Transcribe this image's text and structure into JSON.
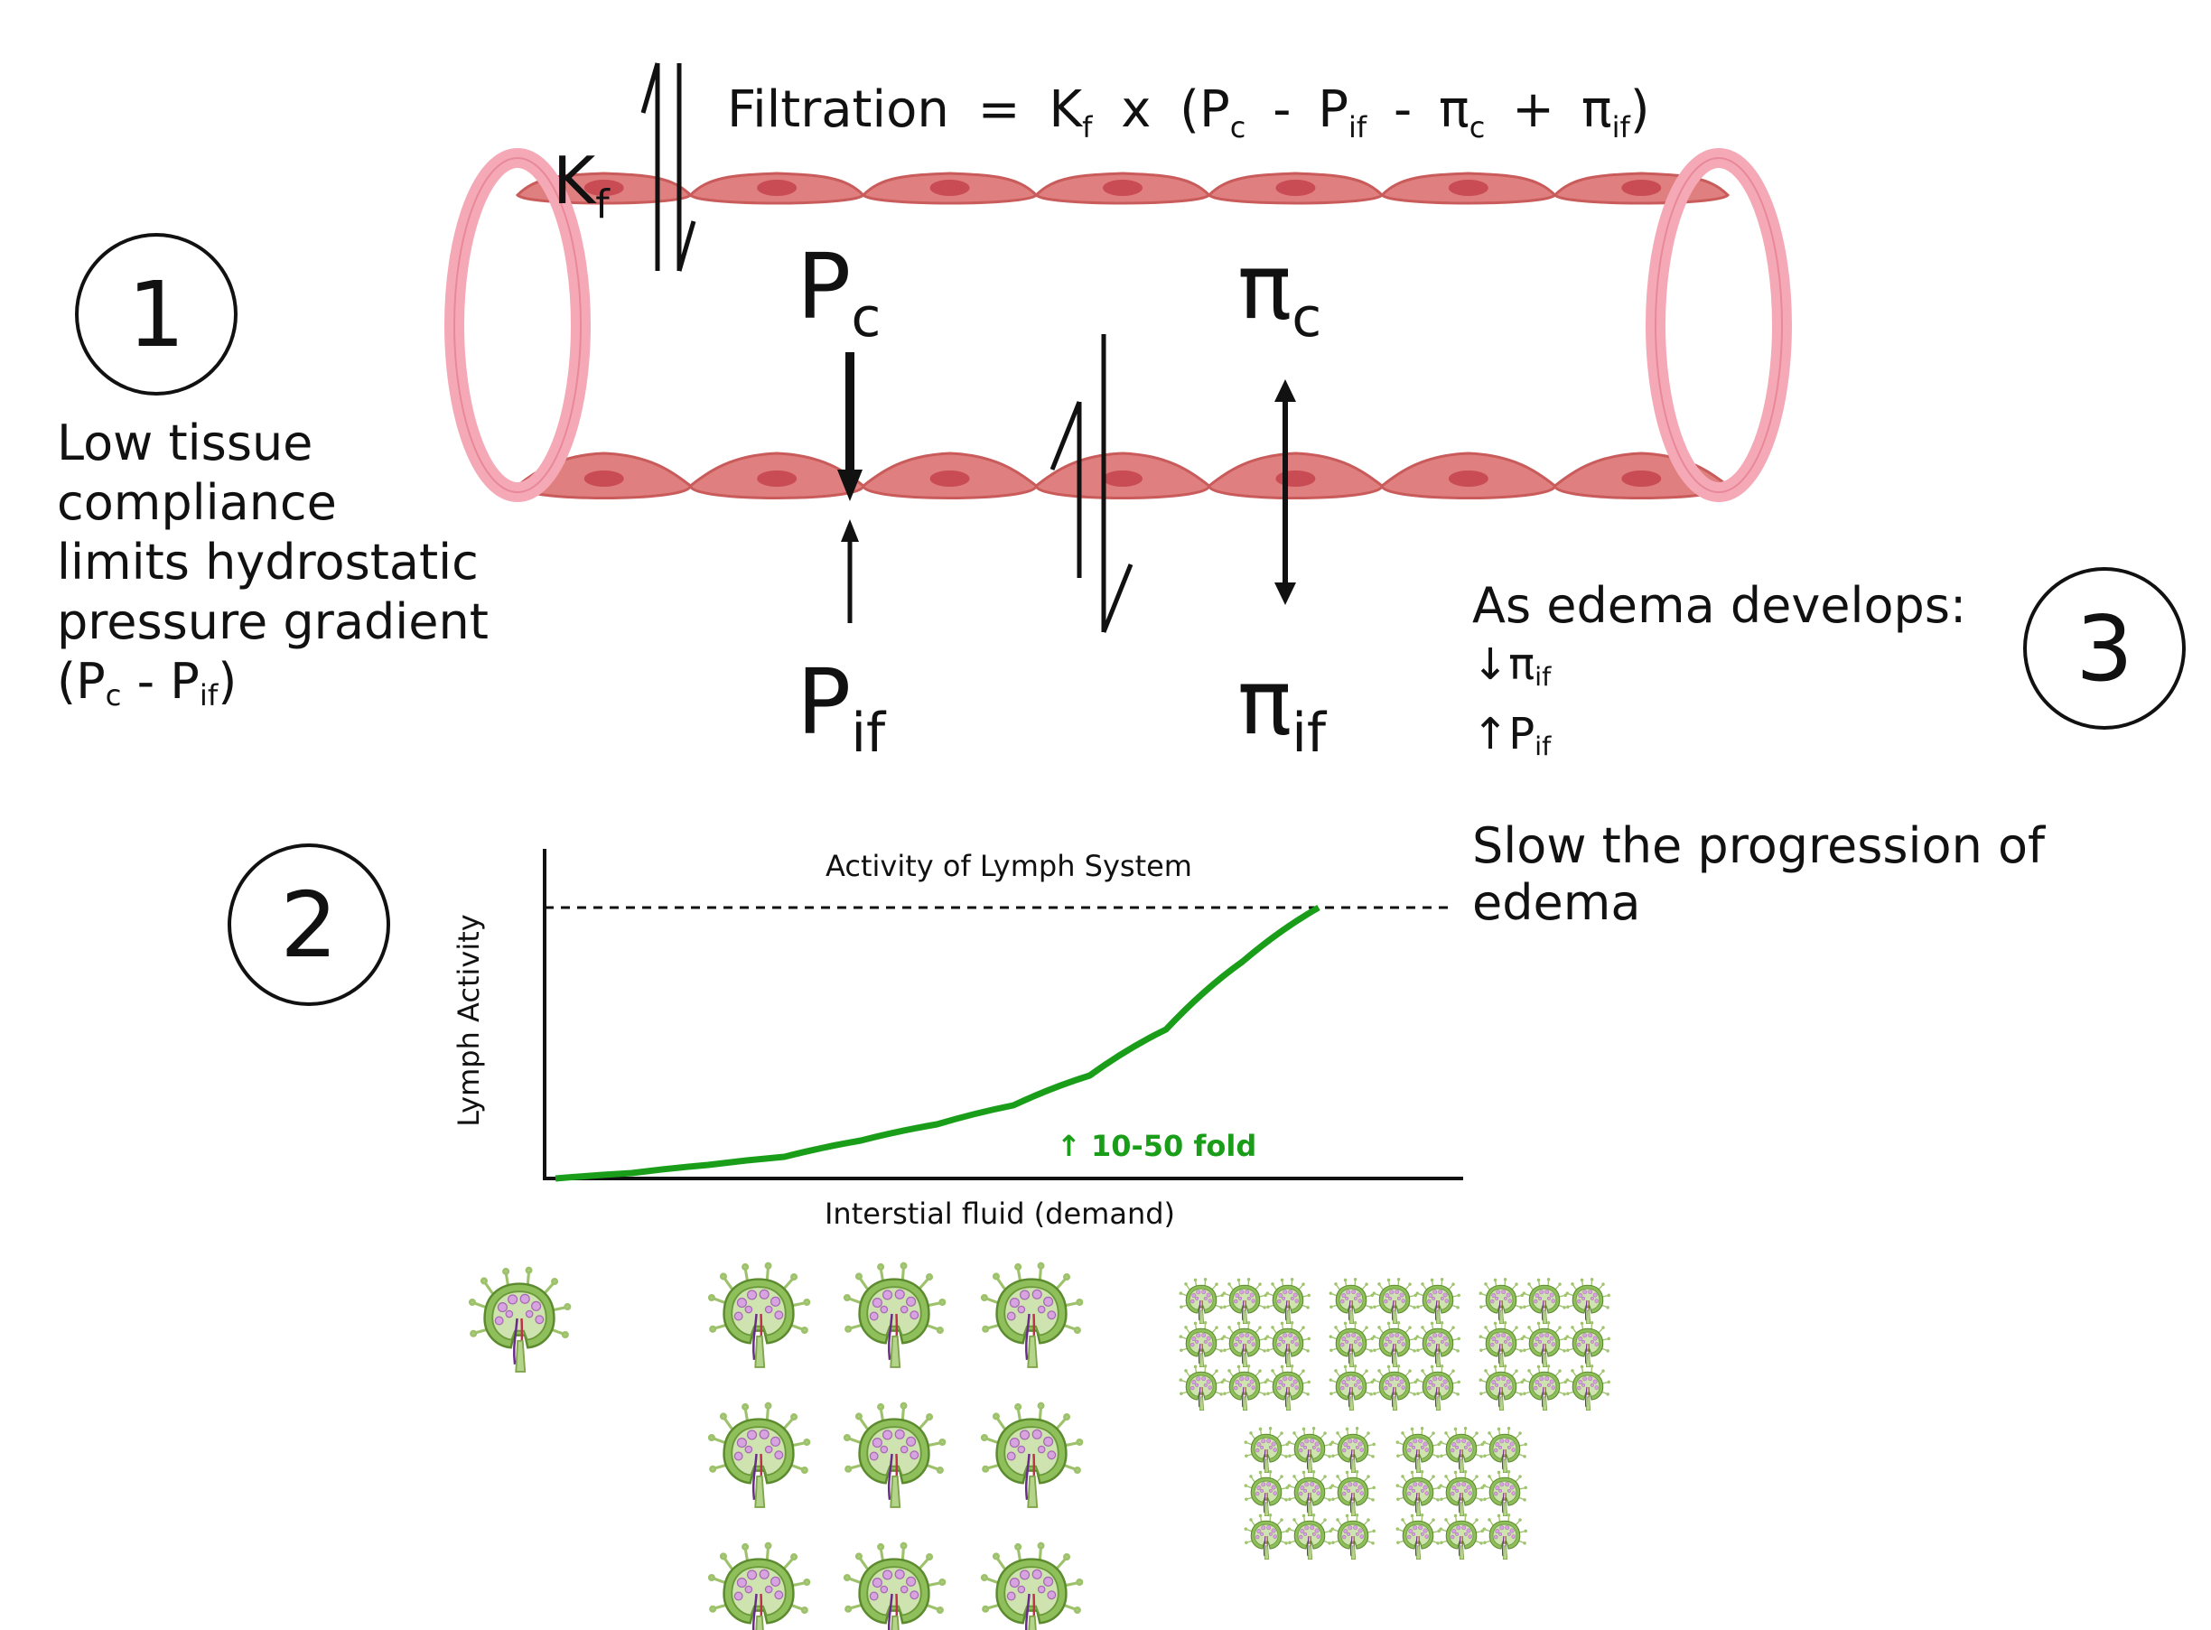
{
  "equation": {
    "lhs": "Filtration",
    "equals": "=",
    "kf": "K",
    "kf_sub": "f",
    "times": "x",
    "open": "(",
    "pc": "P",
    "pc_sub": "c",
    "minus1": "-",
    "pif": "P",
    "pif_sub": "if",
    "minus2": "-",
    "pic": "π",
    "pic_sub": "c",
    "plus": "+",
    "piif": "π",
    "piif_sub": "if",
    "close": ")"
  },
  "vessel_labels": {
    "kf": "K",
    "kf_sub": "f",
    "pc": "P",
    "pc_sub": "c",
    "pif": "P",
    "pif_sub": "if",
    "pic": "π",
    "pic_sub": "c",
    "piif": "π",
    "piif_sub": "if"
  },
  "step1": {
    "number": "1",
    "lines": [
      "Low tissue",
      "compliance",
      "limits hydrostatic",
      "pressure gradient"
    ],
    "last_open": "(P",
    "last_sub1": "c",
    "last_mid": " - P",
    "last_sub2": "if",
    "last_close": ")"
  },
  "step2": {
    "number": "2"
  },
  "step3": {
    "number": "3",
    "heading": "As edema develops:",
    "line1_arrow": "↓",
    "line1_sym": "π",
    "line1_sub": "if",
    "line2_arrow": "↑",
    "line2_sym": "P",
    "line2_sub": "if",
    "conclusion": "Slow the progression of edema"
  },
  "chart_data": {
    "type": "line",
    "title": "Activity of Lymph System",
    "xlabel": "Interstial fluid (demand)",
    "ylabel": "Lymph Activity",
    "annotation": "↑ 10-50 fold",
    "series": [
      {
        "values": [
          [
            0,
            0
          ],
          [
            0.1,
            0.02
          ],
          [
            0.2,
            0.05
          ],
          [
            0.3,
            0.08
          ],
          [
            0.4,
            0.14
          ],
          [
            0.5,
            0.2
          ],
          [
            0.6,
            0.27
          ],
          [
            0.7,
            0.38
          ],
          [
            0.8,
            0.55
          ],
          [
            0.9,
            0.8
          ],
          [
            1.0,
            1.0
          ]
        ]
      }
    ],
    "max_line": 1.0,
    "colors": {
      "curve": "#1a9e1a",
      "axis": "#111111"
    }
  },
  "lymph_nodes": {
    "large_count": 9,
    "small_count": 45,
    "colors": {
      "node": "#8fbf5a",
      "node_dark": "#5c8a2e",
      "cell": "#d7a3e0"
    }
  },
  "colors": {
    "vessel": "#e07f7f",
    "vessel_dark": "#c95b5b",
    "nucleus": "#c94b54",
    "ring": "#f5a9b6"
  }
}
